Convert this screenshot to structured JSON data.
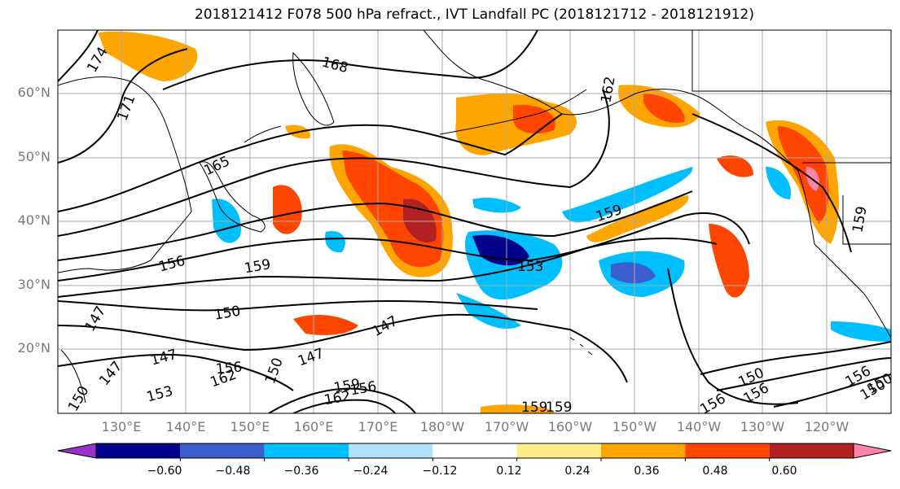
{
  "title": "2018121412 F078 500 hPa refract., IVT Landfall PC (2018121712 - 2018121912)",
  "map": {
    "lat_ticks": [
      {
        "label": "60°N",
        "value": 60
      },
      {
        "label": "50°N",
        "value": 50
      },
      {
        "label": "40°N",
        "value": 40
      },
      {
        "label": "30°N",
        "value": 30
      },
      {
        "label": "20°N",
        "value": 20
      }
    ],
    "lon_ticks": [
      {
        "label": "130°E",
        "value": 130
      },
      {
        "label": "140°E",
        "value": 140
      },
      {
        "label": "150°E",
        "value": 150
      },
      {
        "label": "160°E",
        "value": 160
      },
      {
        "label": "170°E",
        "value": 170
      },
      {
        "label": "180°W",
        "value": 180
      },
      {
        "label": "170°W",
        "value": 190
      },
      {
        "label": "160°W",
        "value": 200
      },
      {
        "label": "150°W",
        "value": 210
      },
      {
        "label": "140°W",
        "value": 220
      },
      {
        "label": "130°W",
        "value": 230
      },
      {
        "label": "120°W",
        "value": 240
      }
    ],
    "contour_labels": [
      "174",
      "171",
      "168",
      "165",
      "162",
      "159",
      "159",
      "159",
      "156",
      "156",
      "153",
      "153",
      "150",
      "150",
      "150",
      "147",
      "147",
      "147",
      "147",
      "147",
      "156",
      "162",
      "159",
      "156",
      "162",
      "159",
      "150",
      "156",
      "159",
      "150",
      "150",
      "156"
    ]
  },
  "colorbar": {
    "ticks": [
      "−0.60",
      "−0.48",
      "−0.36",
      "−0.24",
      "−0.12",
      "0.12",
      "0.24",
      "0.36",
      "0.48",
      "0.60"
    ],
    "colors": [
      "#9932cc",
      "#00008b",
      "#3a5fcd",
      "#00bfff",
      "#b0e2ff",
      "#ffffff",
      "#ffec8b",
      "#ffa500",
      "#ff4500",
      "#b22222",
      "#ff82ab"
    ]
  }
}
